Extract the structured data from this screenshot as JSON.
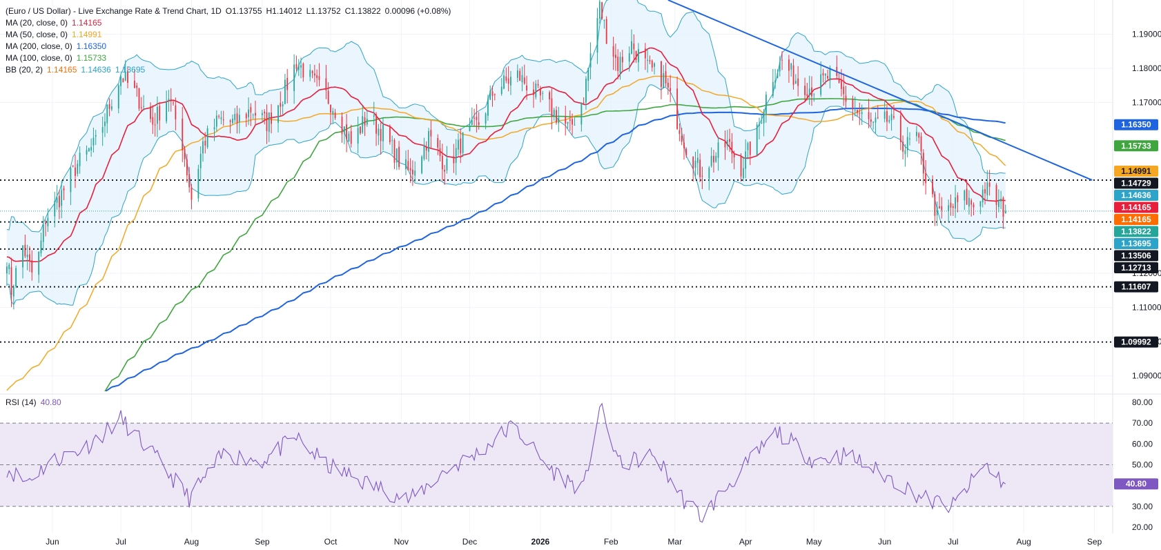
{
  "header": {
    "symbol_line": "(Euro / US Dollar) - Live Exchange Rate & Trend Chart, 1D",
    "open": "O1.13755",
    "high": "H1.14012",
    "low": "L1.13752",
    "close": "C1.13822",
    "change": "0.00096 (+0.08%)"
  },
  "indicators": [
    {
      "label": "MA (20, close, 0)",
      "values": [
        "1.14165"
      ],
      "colors": [
        "#e91e3b"
      ]
    },
    {
      "label": "MA (50, close, 0)",
      "values": [
        "1.14991"
      ],
      "colors": [
        "#f5a623"
      ]
    },
    {
      "label": "MA (200, close, 0)",
      "values": [
        "1.16350"
      ],
      "colors": [
        "#1e63e0"
      ]
    },
    {
      "label": "MA (100, close, 0)",
      "values": [
        "1.15733"
      ],
      "colors": [
        "#3fa63f"
      ]
    },
    {
      "label": "BB (20, 2)",
      "values": [
        "1.14165",
        "1.14636",
        "1.13695"
      ],
      "colors": [
        "#ff6d00",
        "#2ca3c9",
        "#2ca3c9"
      ]
    }
  ],
  "rsi": {
    "label": "RSI (14)",
    "value": "40.80"
  },
  "colors": {
    "up": "#26a69a",
    "down": "#ef3340",
    "ma20": "#e91e3b",
    "ma50": "#f5a623",
    "ma100": "#3fa63f",
    "ma200": "#1e63e0",
    "bb": "#2ca3c9",
    "bb_fill": "#e3f2fd",
    "trend": "#1e63e0",
    "rsi": "#7e57c2",
    "rsi_band": "#ede7f6"
  },
  "chart_data": {
    "type": "candlestick",
    "x_axis": {
      "labels": [
        "Jun",
        "Jul",
        "Aug",
        "Sep",
        "Oct",
        "Nov",
        "Dec",
        "2026",
        "Feb",
        "Mar",
        "Apr",
        "May",
        "Jun",
        "Jul",
        "Aug",
        "Sep"
      ],
      "range": [
        "2025-05-09",
        "2026-09-09"
      ]
    },
    "price_axis": {
      "ticks": [
        "1.09000",
        "1.10000",
        "1.11000",
        "1.12000",
        "1.17000",
        "1.18000",
        "1.19000"
      ],
      "range": [
        1.0855,
        1.2
      ]
    },
    "horizontal_levels": [
      1.14729,
      1.13506,
      1.12713,
      1.11607,
      1.09992
    ],
    "dotted_close_line": 1.13822,
    "price_labels": [
      {
        "text": "1.16350",
        "value": 1.1635,
        "bg": "#1e63e0",
        "fg": "#ffffff"
      },
      {
        "text": "1.15733",
        "value": 1.15733,
        "bg": "#3fa63f",
        "fg": "#ffffff"
      },
      {
        "text": "1.14991",
        "value": 1.14991,
        "bg": "#f5a623",
        "fg": "#131722"
      },
      {
        "text": "1.14729",
        "value": 1.14729,
        "bg": "#131722",
        "fg": "#ffffff"
      },
      {
        "text": "1.14636",
        "value": 1.14636,
        "bg": "#2ca3c9",
        "fg": "#ffffff"
      },
      {
        "text": "1.14165",
        "value": 1.14165,
        "bg": "#e91e3b",
        "fg": "#ffffff"
      },
      {
        "text": "1.14165",
        "value": 1.14165,
        "bg": "#ff6d00",
        "fg": "#ffffff"
      },
      {
        "text": "1.13822",
        "value": 1.13822,
        "bg": "#26a69a",
        "fg": "#ffffff"
      },
      {
        "text": "1.13695",
        "value": 1.13695,
        "bg": "#2ca3c9",
        "fg": "#ffffff"
      },
      {
        "text": "1.13506",
        "value": 1.13506,
        "bg": "#131722",
        "fg": "#ffffff"
      },
      {
        "text": "1.12713",
        "value": 1.12713,
        "bg": "#131722",
        "fg": "#ffffff"
      },
      {
        "text": "1.11607",
        "value": 1.11607,
        "bg": "#131722",
        "fg": "#ffffff"
      },
      {
        "text": "1.09992",
        "value": 1.09992,
        "bg": "#131722",
        "fg": "#ffffff"
      }
    ],
    "trendline": {
      "from": [
        "2026-02-26",
        1.2
      ],
      "to": [
        "2026-08-31",
        1.14729
      ]
    },
    "price_anchors": [
      [
        "2025-05-10",
        1.135
      ],
      [
        "2025-05-14",
        1.115
      ],
      [
        "2025-05-19",
        1.128
      ],
      [
        "2025-05-24",
        1.118
      ],
      [
        "2025-05-29",
        1.136
      ],
      [
        "2025-06-04",
        1.142
      ],
      [
        "2025-06-12",
        1.152
      ],
      [
        "2025-06-20",
        1.158
      ],
      [
        "2025-06-27",
        1.171
      ],
      [
        "2025-07-01",
        1.178
      ],
      [
        "2025-07-08",
        1.172
      ],
      [
        "2025-07-15",
        1.164
      ],
      [
        "2025-07-22",
        1.172
      ],
      [
        "2025-07-28",
        1.158
      ],
      [
        "2025-08-01",
        1.142
      ],
      [
        "2025-08-06",
        1.158
      ],
      [
        "2025-08-13",
        1.165
      ],
      [
        "2025-08-20",
        1.164
      ],
      [
        "2025-08-27",
        1.168
      ],
      [
        "2025-09-03",
        1.164
      ],
      [
        "2025-09-10",
        1.172
      ],
      [
        "2025-09-16",
        1.182
      ],
      [
        "2025-09-22",
        1.177
      ],
      [
        "2025-09-29",
        1.172
      ],
      [
        "2025-10-03",
        1.168
      ],
      [
        "2025-10-10",
        1.158
      ],
      [
        "2025-10-17",
        1.166
      ],
      [
        "2025-10-24",
        1.161
      ],
      [
        "2025-10-31",
        1.153
      ],
      [
        "2025-11-05",
        1.149
      ],
      [
        "2025-11-13",
        1.16
      ],
      [
        "2025-11-21",
        1.151
      ],
      [
        "2025-11-28",
        1.159
      ],
      [
        "2025-12-05",
        1.164
      ],
      [
        "2025-12-12",
        1.174
      ],
      [
        "2025-12-22",
        1.178
      ],
      [
        "2025-12-31",
        1.172
      ],
      [
        "2026-01-07",
        1.167
      ],
      [
        "2026-01-14",
        1.162
      ],
      [
        "2026-01-20",
        1.172
      ],
      [
        "2026-01-24",
        1.188
      ],
      [
        "2026-01-27",
        1.198
      ],
      [
        "2026-01-30",
        1.19
      ],
      [
        "2026-02-04",
        1.181
      ],
      [
        "2026-02-10",
        1.187
      ],
      [
        "2026-02-17",
        1.18
      ],
      [
        "2026-02-24",
        1.177
      ],
      [
        "2026-03-02",
        1.165
      ],
      [
        "2026-03-06",
        1.157
      ],
      [
        "2026-03-12",
        1.15
      ],
      [
        "2026-03-18",
        1.154
      ],
      [
        "2026-03-24",
        1.158
      ],
      [
        "2026-03-30",
        1.151
      ],
      [
        "2026-04-06",
        1.161
      ],
      [
        "2026-04-12",
        1.177
      ],
      [
        "2026-04-17",
        1.182
      ],
      [
        "2026-04-24",
        1.176
      ],
      [
        "2026-05-01",
        1.174
      ],
      [
        "2026-05-08",
        1.178
      ],
      [
        "2026-05-14",
        1.172
      ],
      [
        "2026-05-20",
        1.167
      ],
      [
        "2026-05-27",
        1.163
      ],
      [
        "2026-06-03",
        1.165
      ],
      [
        "2026-06-10",
        1.157
      ],
      [
        "2026-06-15",
        1.16
      ],
      [
        "2026-06-19",
        1.148
      ],
      [
        "2026-06-24",
        1.137
      ],
      [
        "2026-06-30",
        1.139
      ],
      [
        "2026-07-06",
        1.142
      ],
      [
        "2026-07-10",
        1.14
      ],
      [
        "2026-07-15",
        1.145
      ],
      [
        "2026-07-20",
        1.141
      ],
      [
        "2026-07-24",
        1.1382
      ]
    ],
    "rsi_axis": {
      "ticks": [
        "20.00",
        "30.00",
        "40.00",
        "50.00",
        "60.00",
        "70.00",
        "80.00"
      ],
      "range": [
        17,
        82
      ],
      "band": [
        30,
        70
      ],
      "midline": 50
    },
    "rsi_anchors": [
      [
        "2025-05-10",
        50
      ],
      [
        "2025-05-20",
        42
      ],
      [
        "2025-06-01",
        52
      ],
      [
        "2025-06-15",
        58
      ],
      [
        "2025-07-01",
        72
      ],
      [
        "2025-07-15",
        55
      ],
      [
        "2025-07-31",
        34
      ],
      [
        "2025-08-15",
        55
      ],
      [
        "2025-09-01",
        52
      ],
      [
        "2025-09-16",
        63
      ],
      [
        "2025-09-29",
        50
      ],
      [
        "2025-10-15",
        42
      ],
      [
        "2025-11-05",
        33
      ],
      [
        "2025-11-20",
        47
      ],
      [
        "2025-12-05",
        56
      ],
      [
        "2025-12-20",
        69
      ],
      [
        "2026-01-05",
        48
      ],
      [
        "2026-01-20",
        38
      ],
      [
        "2026-01-27",
        78
      ],
      [
        "2026-02-05",
        50
      ],
      [
        "2026-02-20",
        55
      ],
      [
        "2026-03-05",
        33
      ],
      [
        "2026-03-13",
        25
      ],
      [
        "2026-03-25",
        41
      ],
      [
        "2026-04-15",
        66
      ],
      [
        "2026-05-01",
        52
      ],
      [
        "2026-05-15",
        55
      ],
      [
        "2026-06-01",
        45
      ],
      [
        "2026-06-20",
        33
      ],
      [
        "2026-07-01",
        30
      ],
      [
        "2026-07-15",
        50
      ],
      [
        "2026-07-24",
        40.8
      ]
    ]
  }
}
